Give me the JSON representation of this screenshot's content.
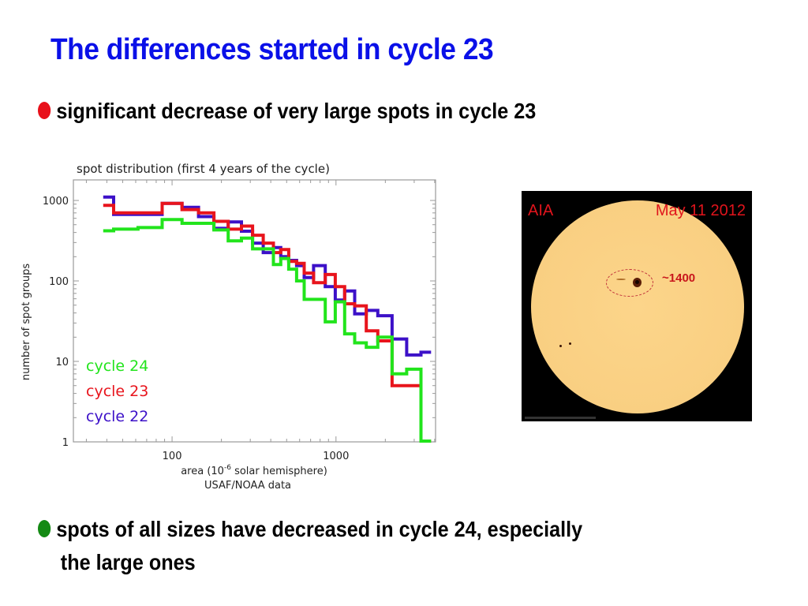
{
  "slide": {
    "title": "The differences started in cycle 23",
    "bullets": [
      {
        "text": "significant decrease of very large spots in cycle 23",
        "bullet_color": "#e8101a"
      },
      {
        "text_line1": "spots of all sizes have decreased in cycle 24, especially",
        "text_line2": "the large ones",
        "bullet_color": "#148a14"
      }
    ]
  },
  "solar_image": {
    "instrument_label": "AIA",
    "date_label": "May 11 2012",
    "region_area_label": "~1400",
    "label_color": "#e0141c"
  },
  "chart_data": {
    "type": "line",
    "style": "step",
    "title": "spot distribution (first 4 years of the cycle)",
    "xlabel": "area (10^-6 solar hemisphere)",
    "xlabel_parts": {
      "pre": "area (10",
      "sup": "-6",
      "post": " solar hemisphere)"
    },
    "xlabel_line2": "USAF/NOAA data",
    "ylabel": "number of spot groups",
    "xscale": "log",
    "yscale": "log",
    "xlim": [
      25,
      4050
    ],
    "ylim": [
      1,
      1800
    ],
    "x_ticks": [
      {
        "value": 100,
        "label": "100"
      },
      {
        "value": 1000,
        "label": "1000"
      }
    ],
    "y_ticks": [
      {
        "value": 1,
        "label": "1"
      },
      {
        "value": 10,
        "label": "10"
      },
      {
        "value": 100,
        "label": "100"
      },
      {
        "value": 1000,
        "label": "1000"
      }
    ],
    "grid": false,
    "legend_position": "bottom-left",
    "bin_edges": [
      38,
      44,
      62,
      87,
      115,
      145,
      180,
      220,
      265,
      310,
      360,
      415,
      460,
      515,
      575,
      640,
      730,
      860,
      990,
      1130,
      1300,
      1530,
      1800,
      2200,
      2700,
      3300,
      3800
    ],
    "series": [
      {
        "name": "cycle 22",
        "color": "#3c10c8",
        "values": [
          1100,
          670,
          670,
          920,
          820,
          630,
          450,
          540,
          415,
          295,
          225,
          260,
          200,
          180,
          155,
          110,
          155,
          85,
          58,
          75,
          39,
          43,
          37,
          19,
          12,
          13
        ]
      },
      {
        "name": "cycle 23",
        "color": "#e8141c",
        "values": [
          870,
          700,
          700,
          920,
          770,
          700,
          550,
          440,
          480,
          370,
          295,
          225,
          245,
          175,
          165,
          125,
          95,
          120,
          85,
          52,
          49,
          24,
          18,
          5,
          5,
          1
        ]
      },
      {
        "name": "cycle 24",
        "color": "#22e41c",
        "values": [
          420,
          440,
          460,
          580,
          520,
          520,
          430,
          315,
          340,
          250,
          250,
          160,
          190,
          140,
          100,
          59,
          59,
          31,
          55,
          22,
          17,
          15,
          20,
          7,
          8,
          1
        ]
      }
    ]
  }
}
